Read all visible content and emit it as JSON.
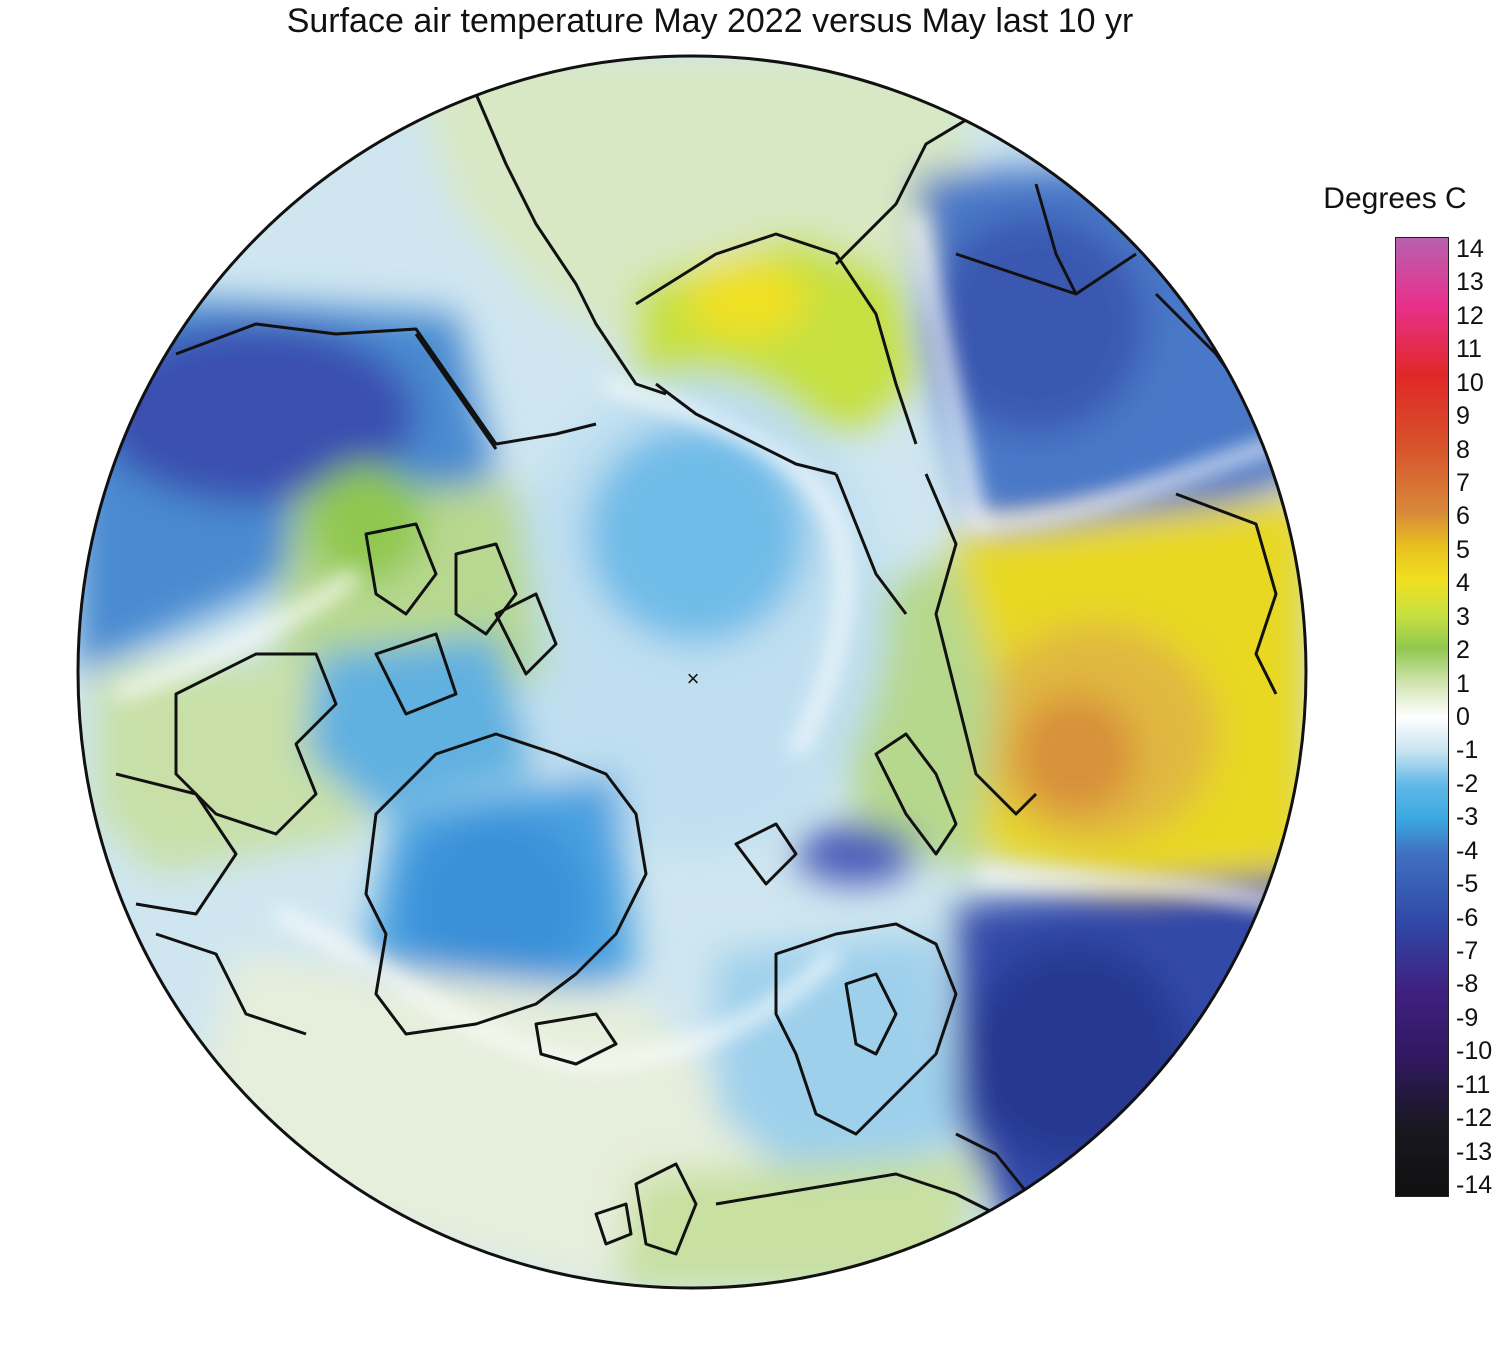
{
  "title": "Surface air temperature May 2022 versus May last 10 yr",
  "legend": {
    "title": "Degrees C",
    "min": -14,
    "max": 14,
    "ticks": [
      "14",
      "13",
      "12",
      "11",
      "10",
      "9",
      "8",
      "7",
      "6",
      "5",
      "4",
      "3",
      "2",
      "1",
      "0",
      "-1",
      "-2",
      "-3",
      "-4",
      "-5",
      "-6",
      "-7",
      "-8",
      "-9",
      "-10",
      "-11",
      "-12",
      "-13",
      "-14"
    ],
    "gradient": [
      {
        "value": 14,
        "color": "#b860b0"
      },
      {
        "value": 12,
        "color": "#e8308a"
      },
      {
        "value": 10,
        "color": "#e02828"
      },
      {
        "value": 8,
        "color": "#d8502a"
      },
      {
        "value": 6,
        "color": "#d8883a"
      },
      {
        "value": 5,
        "color": "#e8c020"
      },
      {
        "value": 4,
        "color": "#f0e020"
      },
      {
        "value": 3,
        "color": "#c8e040"
      },
      {
        "value": 2,
        "color": "#90c850"
      },
      {
        "value": 1,
        "color": "#d0e4b0"
      },
      {
        "value": 0,
        "color": "#ffffff"
      },
      {
        "value": -1,
        "color": "#c8e4f0"
      },
      {
        "value": -2,
        "color": "#60b8e8"
      },
      {
        "value": -3,
        "color": "#3aa8e0"
      },
      {
        "value": -4,
        "color": "#4070c0"
      },
      {
        "value": -6,
        "color": "#3048a8"
      },
      {
        "value": -8,
        "color": "#402080"
      },
      {
        "value": -10,
        "color": "#301860"
      },
      {
        "value": -12,
        "color": "#181820"
      },
      {
        "value": -14,
        "color": "#101010"
      }
    ]
  },
  "map": {
    "projection": "north polar stereographic",
    "pole_marker": "×",
    "background_color": "#cfe6f0",
    "coastline_color": "#111111"
  }
}
